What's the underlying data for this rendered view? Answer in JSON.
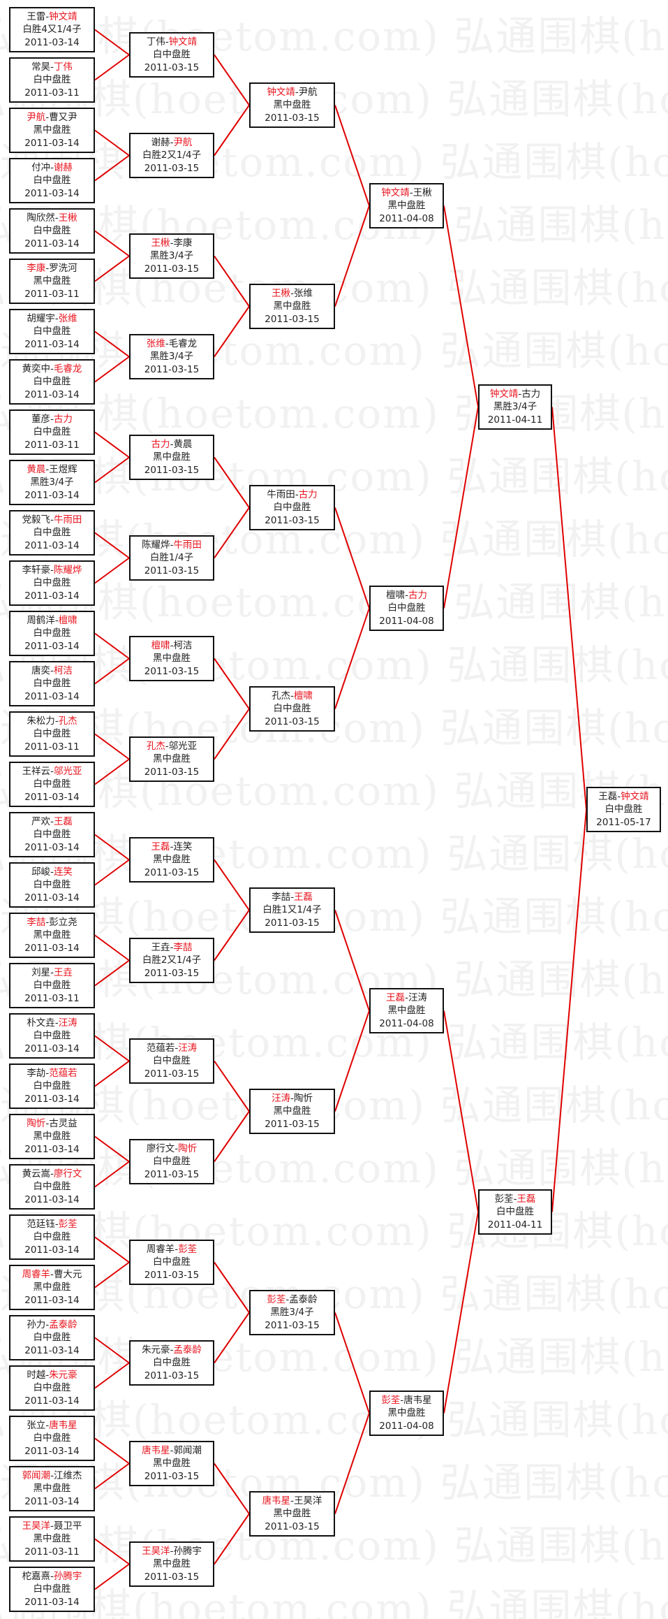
{
  "watermark": "弘通围棋(hoetom.com) 弘通围棋(hoetom.com) 弘通围棋(hoetom.com)",
  "colors": {
    "winner": "#e8141e",
    "line": "#e00000",
    "border": "#111111"
  },
  "rounds": [
    {
      "matches": [
        {
          "p1": "王雷",
          "p2": "钟文靖",
          "winner": 2,
          "result": "白胜4又1/4子",
          "date": "2011-03-14"
        },
        {
          "p1": "常昊",
          "p2": "丁伟",
          "winner": 2,
          "result": "白中盘胜",
          "date": "2011-03-11"
        },
        {
          "p1": "尹航",
          "p2": "曹又尹",
          "winner": 1,
          "result": "黑中盘胜",
          "date": "2011-03-14"
        },
        {
          "p1": "付冲",
          "p2": "谢赫",
          "winner": 2,
          "result": "白中盘胜",
          "date": "2011-03-14"
        },
        {
          "p1": "陶欣然",
          "p2": "王楸",
          "winner": 2,
          "result": "白中盘胜",
          "date": "2011-03-14"
        },
        {
          "p1": "李康",
          "p2": "罗洗河",
          "winner": 1,
          "result": "黑中盘胜",
          "date": "2011-03-11"
        },
        {
          "p1": "胡耀宇",
          "p2": "张维",
          "winner": 2,
          "result": "白中盘胜",
          "date": "2011-03-14"
        },
        {
          "p1": "黄奕中",
          "p2": "毛睿龙",
          "winner": 2,
          "result": "白中盘胜",
          "date": "2011-03-14"
        },
        {
          "p1": "董彦",
          "p2": "古力",
          "winner": 2,
          "result": "白中盘胜",
          "date": "2011-03-11"
        },
        {
          "p1": "黄晨",
          "p2": "王煜辉",
          "winner": 1,
          "result": "黑胜3/4子",
          "date": "2011-03-14"
        },
        {
          "p1": "党毅飞",
          "p2": "牛雨田",
          "winner": 2,
          "result": "白中盘胜",
          "date": "2011-03-14"
        },
        {
          "p1": "李轩豪",
          "p2": "陈耀烨",
          "winner": 2,
          "result": "白中盘胜",
          "date": "2011-03-14"
        },
        {
          "p1": "周鹤洋",
          "p2": "檀啸",
          "winner": 2,
          "result": "白中盘胜",
          "date": "2011-03-14"
        },
        {
          "p1": "唐奕",
          "p2": "柯洁",
          "winner": 2,
          "result": "白中盘胜",
          "date": "2011-03-14"
        },
        {
          "p1": "朱松力",
          "p2": "孔杰",
          "winner": 2,
          "result": "白中盘胜",
          "date": "2011-03-11"
        },
        {
          "p1": "王祥云",
          "p2": "邬光亚",
          "winner": 2,
          "result": "白中盘胜",
          "date": "2011-03-14"
        },
        {
          "p1": "严欢",
          "p2": "王磊",
          "winner": 2,
          "result": "白中盘胜",
          "date": "2011-03-14"
        },
        {
          "p1": "邱峻",
          "p2": "连笑",
          "winner": 2,
          "result": "白中盘胜",
          "date": "2011-03-14"
        },
        {
          "p1": "李喆",
          "p2": "彭立尧",
          "winner": 1,
          "result": "黑中盘胜",
          "date": "2011-03-14"
        },
        {
          "p1": "刘星",
          "p2": "王垚",
          "winner": 2,
          "result": "白中盘胜",
          "date": "2011-03-11"
        },
        {
          "p1": "朴文垚",
          "p2": "汪涛",
          "winner": 2,
          "result": "白中盘胜",
          "date": "2011-03-14"
        },
        {
          "p1": "李劼",
          "p2": "范蕴若",
          "winner": 2,
          "result": "白中盘胜",
          "date": "2011-03-14"
        },
        {
          "p1": "陶忻",
          "p2": "古灵益",
          "winner": 1,
          "result": "黑中盘胜",
          "date": "2011-03-14"
        },
        {
          "p1": "黄云嵩",
          "p2": "廖行文",
          "winner": 2,
          "result": "白中盘胜",
          "date": "2011-03-14"
        },
        {
          "p1": "范廷钰",
          "p2": "彭荃",
          "winner": 2,
          "result": "白中盘胜",
          "date": "2011-03-14"
        },
        {
          "p1": "周睿羊",
          "p2": "曹大元",
          "winner": 1,
          "result": "黑中盘胜",
          "date": "2011-03-14"
        },
        {
          "p1": "孙力",
          "p2": "孟泰龄",
          "winner": 2,
          "result": "白中盘胜",
          "date": "2011-03-14"
        },
        {
          "p1": "时越",
          "p2": "朱元豪",
          "winner": 2,
          "result": "白中盘胜",
          "date": "2011-03-14"
        },
        {
          "p1": "张立",
          "p2": "唐韦星",
          "winner": 2,
          "result": "白中盘胜",
          "date": "2011-03-14"
        },
        {
          "p1": "郭闻潮",
          "p2": "江维杰",
          "winner": 1,
          "result": "黑中盘胜",
          "date": "2011-03-14"
        },
        {
          "p1": "王昊洋",
          "p2": "聂卫平",
          "winner": 1,
          "result": "黑中盘胜",
          "date": "2011-03-11"
        },
        {
          "p1": "柁嘉熹",
          "p2": "孙腾宇",
          "winner": 2,
          "result": "白中盘胜",
          "date": "2011-03-14"
        }
      ]
    },
    {
      "matches": [
        {
          "p1": "丁伟",
          "p2": "钟文靖",
          "winner": 2,
          "result": "白中盘胜",
          "date": "2011-03-15"
        },
        {
          "p1": "谢赫",
          "p2": "尹航",
          "winner": 2,
          "result": "白胜2又1/4子",
          "date": "2011-03-15"
        },
        {
          "p1": "王楸",
          "p2": "李康",
          "winner": 1,
          "result": "黑胜3/4子",
          "date": "2011-03-15"
        },
        {
          "p1": "张维",
          "p2": "毛睿龙",
          "winner": 1,
          "result": "黑胜3/4子",
          "date": "2011-03-15"
        },
        {
          "p1": "古力",
          "p2": "黄晨",
          "winner": 1,
          "result": "黑中盘胜",
          "date": "2011-03-15"
        },
        {
          "p1": "陈耀烨",
          "p2": "牛雨田",
          "winner": 2,
          "result": "白胜1/4子",
          "date": "2011-03-15"
        },
        {
          "p1": "檀啸",
          "p2": "柯洁",
          "winner": 1,
          "result": "黑中盘胜",
          "date": "2011-03-15"
        },
        {
          "p1": "孔杰",
          "p2": "邬光亚",
          "winner": 1,
          "result": "黑中盘胜",
          "date": "2011-03-15"
        },
        {
          "p1": "王磊",
          "p2": "连笑",
          "winner": 1,
          "result": "黑中盘胜",
          "date": "2011-03-15"
        },
        {
          "p1": "王垚",
          "p2": "李喆",
          "winner": 2,
          "result": "白胜2又1/4子",
          "date": "2011-03-15"
        },
        {
          "p1": "范蕴若",
          "p2": "汪涛",
          "winner": 2,
          "result": "白中盘胜",
          "date": "2011-03-15"
        },
        {
          "p1": "廖行文",
          "p2": "陶忻",
          "winner": 2,
          "result": "白中盘胜",
          "date": "2011-03-15"
        },
        {
          "p1": "周睿羊",
          "p2": "彭荃",
          "winner": 2,
          "result": "白中盘胜",
          "date": "2011-03-15"
        },
        {
          "p1": "朱元豪",
          "p2": "孟泰龄",
          "winner": 2,
          "result": "白中盘胜",
          "date": "2011-03-15"
        },
        {
          "p1": "唐韦星",
          "p2": "郭闻潮",
          "winner": 1,
          "result": "黑中盘胜",
          "date": "2011-03-15"
        },
        {
          "p1": "王昊洋",
          "p2": "孙腾宇",
          "winner": 1,
          "result": "黑中盘胜",
          "date": "2011-03-15"
        }
      ]
    },
    {
      "matches": [
        {
          "p1": "钟文靖",
          "p2": "尹航",
          "winner": 1,
          "result": "黑中盘胜",
          "date": "2011-03-15"
        },
        {
          "p1": "王楸",
          "p2": "张维",
          "winner": 1,
          "result": "黑中盘胜",
          "date": "2011-03-15"
        },
        {
          "p1": "牛雨田",
          "p2": "古力",
          "winner": 2,
          "result": "白中盘胜",
          "date": "2011-03-15"
        },
        {
          "p1": "孔杰",
          "p2": "檀啸",
          "winner": 2,
          "result": "白中盘胜",
          "date": "2011-03-15"
        },
        {
          "p1": "李喆",
          "p2": "王磊",
          "winner": 2,
          "result": "白胜1又1/4子",
          "date": "2011-03-15"
        },
        {
          "p1": "汪涛",
          "p2": "陶忻",
          "winner": 1,
          "result": "黑中盘胜",
          "date": "2011-03-15"
        },
        {
          "p1": "彭荃",
          "p2": "孟泰龄",
          "winner": 1,
          "result": "黑胜3/4子",
          "date": "2011-03-15"
        },
        {
          "p1": "唐韦星",
          "p2": "王昊洋",
          "winner": 1,
          "result": "黑中盘胜",
          "date": "2011-03-15"
        }
      ]
    },
    {
      "matches": [
        {
          "p1": "钟文靖",
          "p2": "王楸",
          "winner": 1,
          "result": "黑中盘胜",
          "date": "2011-04-08"
        },
        {
          "p1": "檀啸",
          "p2": "古力",
          "winner": 2,
          "result": "白中盘胜",
          "date": "2011-04-08"
        },
        {
          "p1": "王磊",
          "p2": "汪涛",
          "winner": 1,
          "result": "黑中盘胜",
          "date": "2011-04-08"
        },
        {
          "p1": "彭荃",
          "p2": "唐韦星",
          "winner": 1,
          "result": "黑中盘胜",
          "date": "2011-04-08"
        }
      ]
    },
    {
      "matches": [
        {
          "p1": "钟文靖",
          "p2": "古力",
          "winner": 1,
          "result": "黑胜3/4子",
          "date": "2011-04-11"
        },
        {
          "p1": "彭荃",
          "p2": "王磊",
          "winner": 2,
          "result": "白中盘胜",
          "date": "2011-04-11"
        }
      ]
    },
    {
      "matches": [
        {
          "p1": "王磊",
          "p2": "钟文靖",
          "winner": 2,
          "result": "白中盘胜",
          "date": "2011-05-17"
        }
      ]
    }
  ]
}
